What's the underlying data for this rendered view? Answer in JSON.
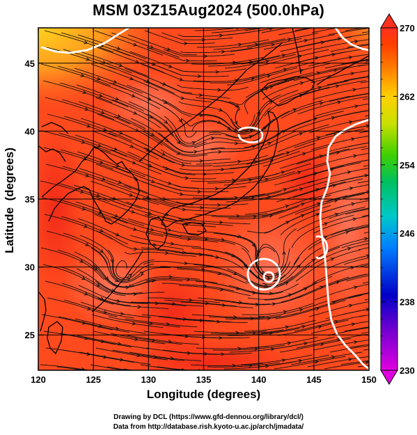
{
  "figure": {
    "title": "MSM 03Z15Aug2024 (500.0hPa)",
    "xlabel": "Longitude (degrees)",
    "ylabel": "Latitude  (degrees)",
    "footer_line1": "Drawing by DCL (https://www.gfd-dennou.org/library/dcl/)",
    "footer_line2": "Data from http://database.rish.kyoto-u.ac.jp/arch/jmadata/"
  },
  "map": {
    "lon_range": [
      120,
      150
    ],
    "lat_range": [
      22.4,
      47.6
    ],
    "lon_ticks": [
      120,
      125,
      130,
      135,
      140,
      145,
      150
    ],
    "lat_ticks": [
      25,
      30,
      35,
      40,
      45
    ],
    "field_colors": {
      "dominant": "#ff4a1e",
      "warmer": "#f02818",
      "cooler": "#ffb41e",
      "light_patch": "#ff7a55",
      "contour": "#ffffff",
      "coast": "#000000"
    },
    "vortices": [
      {
        "name": "typhoon-center",
        "lon": 141.0,
        "lat": 30.0
      },
      {
        "name": "low-north",
        "lon": 138.6,
        "lat": 40.5
      },
      {
        "name": "eddy-sea-of-japan",
        "lon": 133.5,
        "lat": 39.5
      },
      {
        "name": "eddy-east-china-sea",
        "lon": 127.5,
        "lat": 29.5
      }
    ]
  },
  "colorbar": {
    "min": 230,
    "max": 270,
    "ticks": [
      270,
      262,
      254,
      246,
      238,
      230
    ],
    "colors": [
      "#e000e0",
      "#8000d0",
      "#0000d0",
      "#0080ff",
      "#00c0c0",
      "#00c060",
      "#40d000",
      "#c0e000",
      "#ffd000",
      "#ff8000",
      "#ff4000",
      "#ff2020"
    ]
  }
}
